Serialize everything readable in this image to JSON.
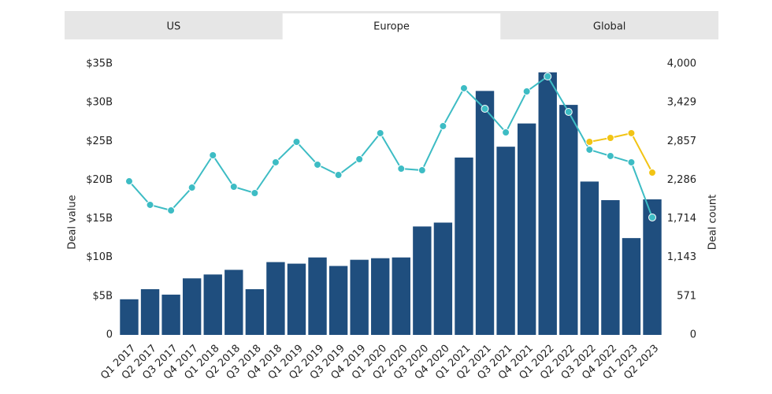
{
  "tabs": [
    "US",
    "Europe",
    "Global"
  ],
  "active_tab": 1,
  "chart_data": {
    "type": "bar_line",
    "y_label": "Deal value",
    "y2_label": "Deal count",
    "categories": [
      "Q1 2017",
      "Q2 2017",
      "Q3 2017",
      "Q4 2017",
      "Q1 2018",
      "Q2 2018",
      "Q3 2018",
      "Q4 2018",
      "Q1 2019",
      "Q2 2019",
      "Q3 2019",
      "Q4 2019",
      "Q1 2020",
      "Q2 2020",
      "Q3 2020",
      "Q4 2020",
      "Q1 2021",
      "Q2 2021",
      "Q3 2021",
      "Q4 2021",
      "Q1 2022",
      "Q2 2022",
      "Q3 2022",
      "Q4 2022",
      "Q1 2023",
      "Q2 2023"
    ],
    "series": [
      {
        "type": "bar",
        "color": "#1f4e7e",
        "values": [
          4.6,
          5.9,
          5.2,
          7.3,
          7.8,
          8.4,
          5.9,
          9.4,
          9.2,
          10.0,
          8.9,
          9.7,
          9.9,
          10.0,
          14.0,
          14.5,
          22.9,
          31.5,
          24.3,
          27.3,
          33.9,
          29.7,
          19.8,
          17.4,
          12.5,
          17.5
        ]
      },
      {
        "type": "line",
        "axis": "y2",
        "color": "#3dbcc4",
        "values": [
          2267,
          1919,
          1837,
          2174,
          2651,
          2186,
          2093,
          2547,
          2849,
          2512,
          2360,
          2593,
          2977,
          2453,
          2430,
          3081,
          3640,
          3337,
          2988,
          3593,
          3814,
          3291,
          2733,
          2640,
          2547,
          1733
        ]
      },
      {
        "type": "line",
        "axis": "y2",
        "color": "#f2c414",
        "values": [
          null,
          null,
          null,
          null,
          null,
          null,
          null,
          null,
          null,
          null,
          null,
          null,
          null,
          null,
          null,
          null,
          null,
          null,
          null,
          null,
          null,
          null,
          2849,
          2907,
          2977,
          2395
        ]
      }
    ],
    "ylim": [
      0,
      35
    ],
    "yticks": [
      0,
      {
        "value": 5,
        "label": "$5B"
      },
      {
        "value": 10,
        "label": "$10B"
      },
      {
        "value": 15,
        "label": "$15B"
      },
      {
        "value": 20,
        "label": "$20B"
      },
      {
        "value": 25,
        "label": "$25B"
      },
      {
        "value": 30,
        "label": "$30B"
      },
      {
        "value": 35,
        "label": "$35B"
      }
    ],
    "y2lim": [
      0,
      4000
    ],
    "y2ticks": [
      0,
      {
        "value": 571.4,
        "label": "571"
      },
      {
        "value": 1142.9,
        "label": "1,143"
      },
      {
        "value": 1714.3,
        "label": "1,714"
      },
      {
        "value": 2285.7,
        "label": "2,286"
      },
      {
        "value": 2857.1,
        "label": "2,857"
      },
      {
        "value": 3428.6,
        "label": "3,429"
      },
      {
        "value": 4000,
        "label": "4,000"
      }
    ],
    "grid": false
  }
}
